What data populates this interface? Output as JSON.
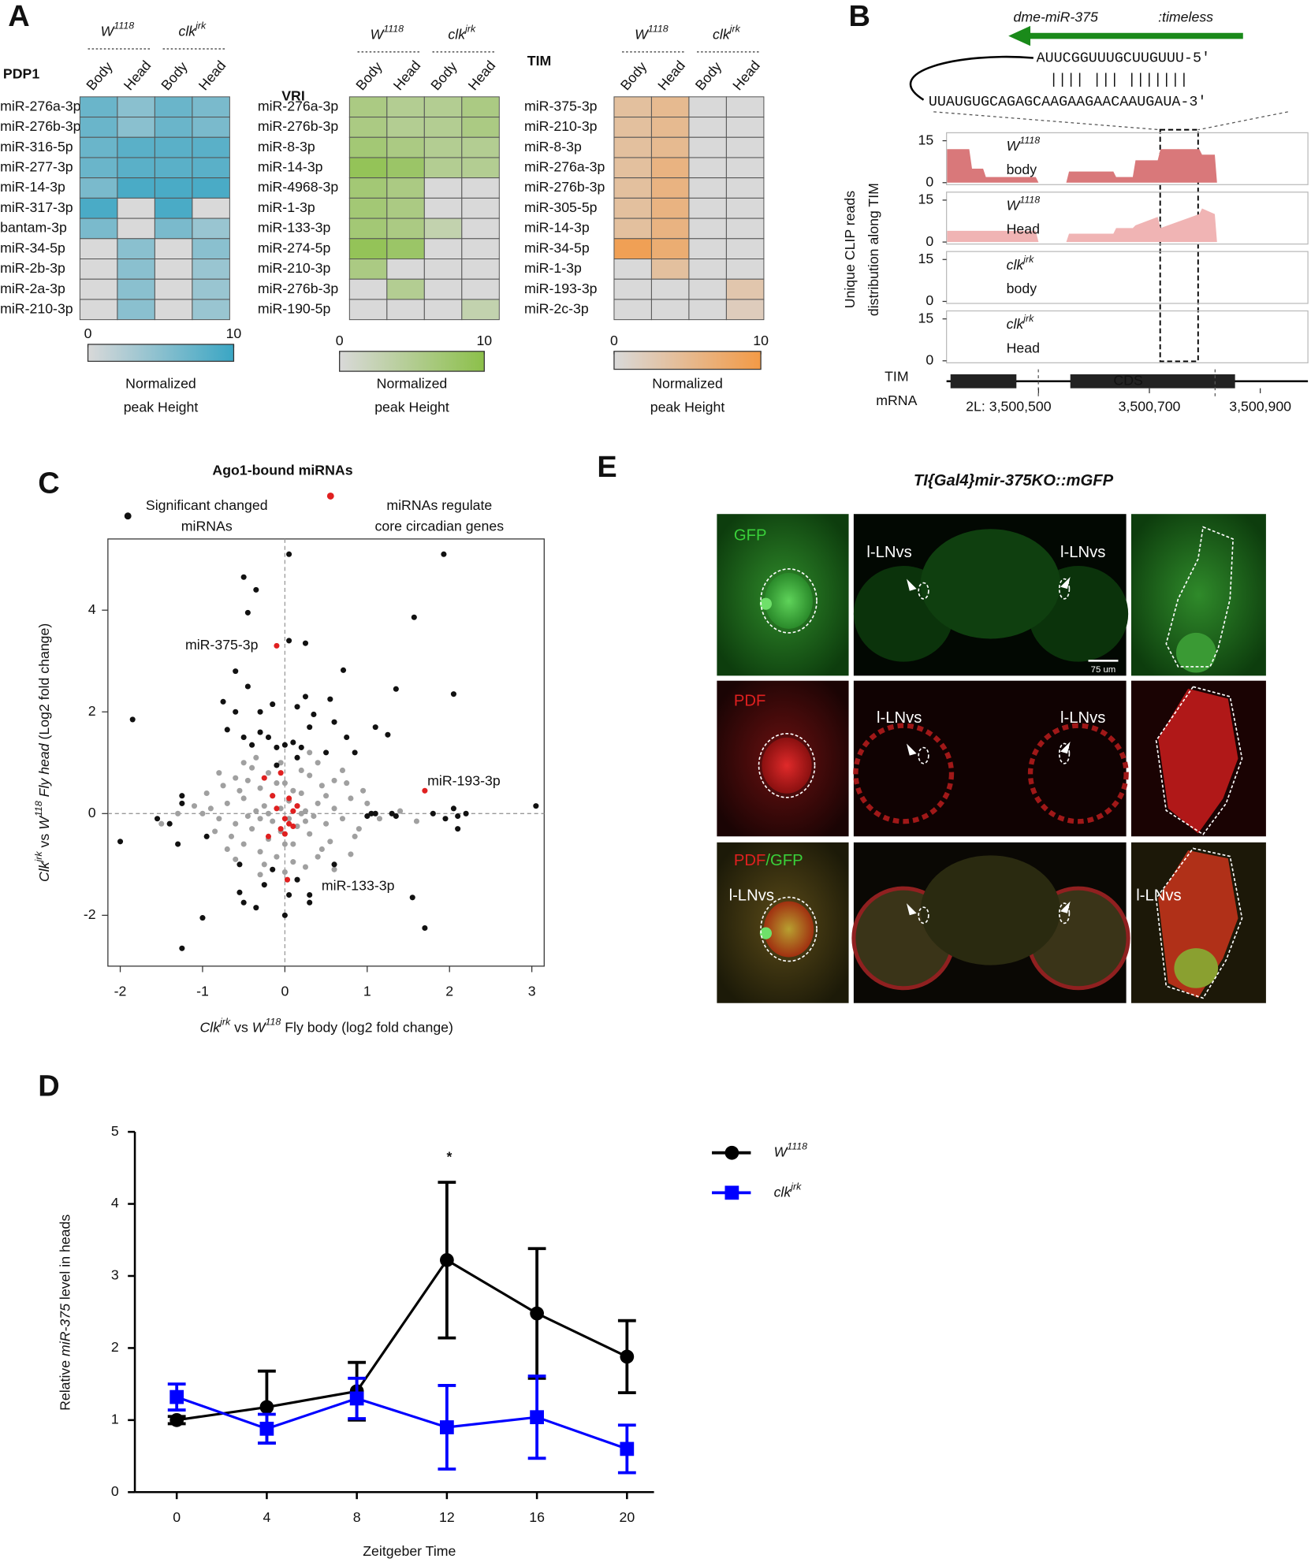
{
  "panel_labels": [
    "A",
    "B",
    "C",
    "D",
    "E"
  ],
  "chart_data": [
    {
      "type": "heatmap",
      "title": "PDP1",
      "groups": [
        [
          "W",
          "1118"
        ],
        [
          "clk",
          "jrk"
        ]
      ],
      "columns": [
        "Body",
        "Head",
        "Body",
        "Head"
      ],
      "rows": [
        "miR-276a-3p",
        "miR-276b-3p",
        "miR-316-5p",
        "miR-277-3p",
        "miR-14-3p",
        "miR-317-3p",
        "bantam-3p",
        "miR-34-5p",
        "miR-2b-3p",
        "miR-2a-3p",
        "miR-210-3p"
      ],
      "values": [
        [
          7,
          5,
          7,
          6
        ],
        [
          7,
          5,
          7,
          6
        ],
        [
          7,
          8,
          8,
          8
        ],
        [
          7,
          8,
          8,
          8
        ],
        [
          6,
          9,
          9,
          9
        ],
        [
          9,
          0,
          9,
          0
        ],
        [
          6,
          0,
          6,
          4
        ],
        [
          0,
          5,
          0,
          5
        ],
        [
          0,
          5,
          0,
          4
        ],
        [
          0,
          5,
          0,
          4
        ],
        [
          0,
          5,
          0,
          4
        ]
      ],
      "colors": [
        "#d9d9d9",
        "#3aa6c4"
      ],
      "clim": [
        0,
        10
      ],
      "cticks": [
        0,
        10
      ],
      "colorbar_label": [
        "Normalized",
        "peak Height"
      ]
    },
    {
      "type": "heatmap",
      "title": "VRI",
      "groups": [
        [
          "W",
          "1118"
        ],
        [
          "clk",
          "jrk"
        ]
      ],
      "columns": [
        "Body",
        "Head",
        "Body",
        "Head"
      ],
      "rows": [
        "miR-276a-3p",
        "miR-276b-3p",
        "miR-8-3p",
        "miR-14-3p",
        "miR-4968-3p",
        "miR-1-3p",
        "miR-133-3p",
        "miR-274-5p",
        "miR-210-3p",
        "miR-276b-3p",
        "miR-190-5p"
      ],
      "values": [
        [
          6,
          5,
          5,
          6
        ],
        [
          6,
          5,
          5,
          6
        ],
        [
          7,
          6,
          5,
          5
        ],
        [
          9,
          8,
          5,
          5
        ],
        [
          7,
          6,
          0,
          0
        ],
        [
          7,
          6,
          0,
          0
        ],
        [
          7,
          6,
          3,
          0
        ],
        [
          9,
          8,
          0,
          0
        ],
        [
          6,
          0,
          0,
          0
        ],
        [
          0,
          5,
          0,
          0
        ],
        [
          0,
          0,
          0,
          3
        ]
      ],
      "colors": [
        "#d9d9d9",
        "#8cc04a"
      ],
      "clim": [
        0,
        10
      ],
      "cticks": [
        0,
        10
      ],
      "colorbar_label": [
        "Normalized",
        "peak Height"
      ]
    },
    {
      "type": "heatmap",
      "title": "TIM",
      "groups": [
        [
          "W",
          "1118"
        ],
        [
          "clk",
          "jrk"
        ]
      ],
      "columns": [
        "Body",
        "Head",
        "Body",
        "Head"
      ],
      "rows": [
        "miR-375-3p",
        "miR-210-3p",
        "miR-8-3p",
        "miR-276a-3p",
        "miR-276b-3p",
        "miR-305-5p",
        "miR-14-3p",
        "miR-34-5p",
        "miR-1-3p",
        "miR-193-3p",
        "miR-2c-3p"
      ],
      "values": [
        [
          4,
          5,
          0,
          0
        ],
        [
          4,
          5,
          0,
          0
        ],
        [
          4,
          5,
          0,
          0
        ],
        [
          4,
          6,
          0,
          0
        ],
        [
          4,
          6,
          0,
          0
        ],
        [
          4,
          6,
          0,
          0
        ],
        [
          4,
          6,
          0,
          0
        ],
        [
          9,
          7,
          0,
          0
        ],
        [
          0,
          4,
          0,
          0
        ],
        [
          0,
          0,
          0,
          3
        ],
        [
          0,
          0,
          0,
          2
        ]
      ],
      "colors": [
        "#d9d9d9",
        "#f39a46"
      ],
      "clim": [
        0,
        10
      ],
      "cticks": [
        0,
        10
      ],
      "colorbar_label": [
        "Normalized",
        "peak Height"
      ]
    },
    {
      "type": "coverage",
      "title": "dme-miR-375",
      "title_target": ":timeless",
      "seq_mirna": "AUUCGGUUUGCUUGUUU-5′",
      "pairing": "|||| ||| |||||||",
      "seq_target": "UUAUGUGCAGAGCAAGAAGAACAAUGAUA-3′",
      "ylabel": [
        "Unique CLIP reads",
        "distribution along TIM"
      ],
      "x": [
        3500335,
        3500375,
        3500380,
        3500400,
        3500405,
        3500495,
        3500500,
        3500550,
        3500555,
        3500635,
        3500640,
        3500670,
        3500675,
        3500715,
        3500720,
        3500790,
        3500795,
        3500818,
        3500822,
        3500985
      ],
      "xlim": [
        3500334,
        3500986
      ],
      "xticks": [
        {
          "value": 3500500,
          "label": "2L: 3,500,500"
        },
        {
          "value": 3500700,
          "label": "3,500,700"
        },
        {
          "value": 3500900,
          "label": "3,500,900"
        }
      ],
      "ylim": [
        0,
        15
      ],
      "yticks": [
        0,
        15
      ],
      "series": [
        {
          "name": [
            "W",
            "1118",
            "body"
          ],
          "color": "#d9787a",
          "values": [
            12,
            12,
            5,
            5,
            2,
            2,
            0,
            0,
            4,
            4,
            2,
            2,
            8,
            8,
            12,
            12,
            10,
            10,
            0,
            0
          ]
        },
        {
          "name": [
            "W",
            "1118",
            "Head"
          ],
          "color": "#f0b4b4",
          "values": [
            4,
            4,
            4,
            4,
            4,
            4,
            0,
            0,
            3,
            3,
            5,
            5,
            6,
            9,
            5,
            10,
            12,
            10,
            0,
            0
          ]
        },
        {
          "name": [
            "clk",
            "jrk",
            "body"
          ],
          "color": "#d9787a",
          "values": [
            0,
            0,
            0,
            0,
            0,
            0,
            0,
            0,
            0,
            0,
            0,
            0,
            0,
            0,
            0,
            0,
            0,
            0,
            0,
            0
          ]
        },
        {
          "name": [
            "clk",
            "jrk",
            "Head"
          ],
          "color": "#f0b4b4",
          "values": [
            0,
            0,
            0,
            0,
            0,
            0,
            0,
            0,
            0,
            0,
            0,
            0,
            0,
            0,
            0,
            0,
            0,
            0,
            0,
            0
          ]
        }
      ],
      "gene": [
        "TIM",
        "mRNA"
      ],
      "feature": "CDS"
    },
    {
      "type": "scatter",
      "title": "Ago1-bound miRNAs",
      "xlabel": [
        "Clk",
        "jrk",
        " vs ",
        "W",
        "118",
        " Fly body (log2 fold change)"
      ],
      "ylabel": [
        "Clk",
        "jrk",
        " vs ",
        "W",
        "118",
        " Fly head",
        " (Log2 fold change)"
      ],
      "xlim": [
        -2.15,
        3.15
      ],
      "ylim": [
        -3,
        5.4
      ],
      "xticks": [
        -2,
        -1,
        0,
        1,
        2,
        3
      ],
      "yticks": [
        -2,
        0,
        2,
        4
      ],
      "series": [
        {
          "color": "#a0a0a0",
          "x": [
            -0.9,
            -0.8,
            -0.7,
            -0.6,
            -0.5,
            -0.4,
            -0.3,
            -0.2,
            -0.1,
            0.1,
            0.2,
            0.3,
            0.4,
            0.5,
            0.6,
            0.7,
            0.8,
            0.9,
            -1.0,
            1.0,
            -0.25,
            -0.15,
            0.05,
            0.15,
            0.25,
            -0.35,
            -0.45,
            0.35,
            -0.55,
            0.45,
            -0.65,
            0.55,
            -0.2,
            0.2,
            -0.1,
            0.1,
            -0.3,
            0.3,
            -0.4,
            0.4,
            -0.05,
            0.0,
            -0.75,
            0.75,
            -0.85,
            0.85,
            -1.1,
            1.15,
            -0.6,
            0.6,
            -0.15,
            0.1,
            -0.05,
            0.15,
            -0.3,
            0.25,
            -0.5,
            0.45,
            -0.95,
            0.95,
            -0.7,
            0.7,
            -0.25,
            0.25,
            -0.35,
            0.4,
            -1.3,
            1.4,
            -0.45,
            0.5,
            -1.5,
            1.6,
            -0.05,
            0.05,
            -0.2,
            0.2,
            -0.8,
            0.8,
            -0.6,
            0.3,
            -0.3,
            0.0,
            0.0,
            -0.5,
            0.6
          ],
          "y": [
            0.1,
            -0.1,
            0.2,
            -0.2,
            0.3,
            -0.3,
            0.5,
            -0.5,
            0.6,
            -0.6,
            0.4,
            -0.4,
            0.2,
            -0.2,
            0.1,
            -0.1,
            0.3,
            -0.3,
            0.0,
            0.2,
            0.15,
            -0.15,
            0.25,
            -0.25,
            0.05,
            0.05,
            -0.05,
            -0.05,
            0.45,
            0.55,
            -0.45,
            -0.55,
            0.8,
            0.85,
            -0.85,
            -0.95,
            -0.75,
            0.75,
            0.9,
            -0.85,
            1.0,
            -1.15,
            0.55,
            0.6,
            -0.35,
            -0.45,
            0.15,
            -0.1,
            0.7,
            0.65,
            0.35,
            0.45,
            -0.35,
            0.15,
            -0.1,
            -0.15,
            -0.6,
            -0.7,
            0.4,
            0.45,
            -0.7,
            0.85,
            -1.0,
            -1.05,
            1.1,
            1.0,
            0.0,
            0.05,
            0.65,
            0.35,
            -0.2,
            -0.15,
            0.1,
            -0.1,
            0.0,
            0.0,
            0.8,
            -0.8,
            -0.9,
            1.2,
            -1.2,
            0.6,
            -0.6,
            1.0,
            -1.1
          ]
        },
        {
          "name": [
            "Significant changed",
            "miRNAs"
          ],
          "color": "#111111",
          "x": [
            -0.5,
            -0.35,
            -0.45,
            0.05,
            0.25,
            0.05,
            1.93,
            1.57,
            0.71,
            -0.6,
            1.35,
            2.05,
            -1.85,
            3.05,
            -2.0,
            -1.25,
            -1.0,
            1.7,
            1.55,
            0.3,
            0.3,
            -0.5,
            -0.35,
            -0.55,
            -0.25,
            -0.15,
            -1.25,
            -1.25,
            -1.4,
            -1.55,
            -1.3,
            -0.95,
            -0.55,
            0.15,
            0.05,
            0.0,
            0.6,
            1.05,
            1.1,
            1.3,
            1.35,
            1.0,
            1.8,
            2.05,
            2.1,
            2.2,
            2.1,
            1.95,
            -0.3,
            -0.2,
            -0.1,
            0.0,
            0.1,
            0.2,
            -0.4,
            -0.5,
            -0.6,
            -0.7,
            -0.75,
            -0.3,
            0.15,
            0.3,
            0.35,
            0.55,
            0.6,
            0.75,
            0.85,
            0.5,
            1.1,
            1.25,
            -0.45,
            0.25,
            -0.15,
            -0.1,
            0.15
          ],
          "y": [
            4.65,
            4.4,
            3.95,
            5.1,
            3.35,
            3.4,
            5.1,
            3.86,
            2.82,
            2.8,
            2.45,
            2.35,
            1.85,
            0.15,
            -0.55,
            -2.65,
            -2.05,
            -2.25,
            -1.65,
            -1.75,
            -1.6,
            -1.75,
            -1.85,
            -1.55,
            -1.4,
            -1.1,
            0.2,
            0.35,
            -0.2,
            -0.1,
            -0.6,
            -0.45,
            -1.0,
            -1.3,
            -1.6,
            -2.0,
            -1.0,
            0.0,
            0.0,
            0.0,
            -0.05,
            -0.05,
            0.0,
            0.1,
            -0.05,
            0.0,
            -0.3,
            -0.1,
            1.6,
            1.5,
            1.3,
            1.35,
            1.4,
            1.3,
            1.35,
            1.5,
            2.0,
            1.65,
            2.2,
            2.0,
            2.1,
            1.7,
            1.95,
            2.25,
            1.8,
            1.5,
            1.2,
            1.2,
            1.7,
            1.55,
            2.5,
            2.3,
            2.15,
            0.95,
            1.1
          ]
        },
        {
          "name": [
            "miRNAs regulate",
            "core circadian genes"
          ],
          "color": "#e02020",
          "x": [
            -0.1,
            1.7,
            0.03,
            -0.25,
            -0.05,
            -0.15,
            0.05,
            -0.1,
            0.1,
            0.0,
            0.05,
            -0.05,
            0.1,
            -0.2,
            0.0,
            0.15
          ],
          "y": [
            3.3,
            0.45,
            -1.3,
            0.7,
            0.8,
            0.35,
            0.3,
            0.1,
            0.05,
            -0.1,
            -0.2,
            -0.3,
            -0.25,
            -0.45,
            -0.4,
            0.15
          ]
        }
      ],
      "annotations": [
        "miR-375-3p",
        "miR-193-3p",
        "miR-133-3p"
      ]
    },
    {
      "type": "line",
      "x": [
        0,
        4,
        8,
        12,
        16,
        20
      ],
      "xlim": [
        -1.86,
        21.2
      ],
      "xticks": [
        0,
        4,
        8,
        12,
        16,
        20
      ],
      "ylim": [
        0,
        5
      ],
      "yticks": [
        0,
        1,
        2,
        3,
        4,
        5
      ],
      "xlabel": "Zeitgeber Time",
      "ylabel": [
        "Relative ",
        "miR-375",
        " level in heads"
      ],
      "series": [
        {
          "name": [
            "W",
            "1118"
          ],
          "color": "#000000",
          "marker": "circle",
          "values": [
            1.0,
            1.18,
            1.4,
            3.22,
            2.48,
            1.88
          ],
          "errors": [
            0.05,
            0.5,
            0.4,
            1.08,
            0.9,
            0.5
          ]
        },
        {
          "name": [
            "clk",
            "jrk"
          ],
          "color": "#0000ff",
          "marker": "square",
          "values": [
            1.32,
            0.88,
            1.3,
            0.9,
            1.04,
            0.6
          ],
          "errors": [
            0.18,
            0.2,
            0.28,
            0.58,
            0.57,
            0.33
          ]
        }
      ],
      "annotations": [
        "*"
      ]
    }
  ],
  "panel_e": {
    "title": "TI{Gal4}mir-375KO::mGFP",
    "rows": [
      [
        "GFP"
      ],
      [
        "PDF"
      ],
      [
        "PDF",
        "/GFP"
      ]
    ],
    "cell_label": "l-LNvs",
    "scale_bar": "75 um"
  }
}
